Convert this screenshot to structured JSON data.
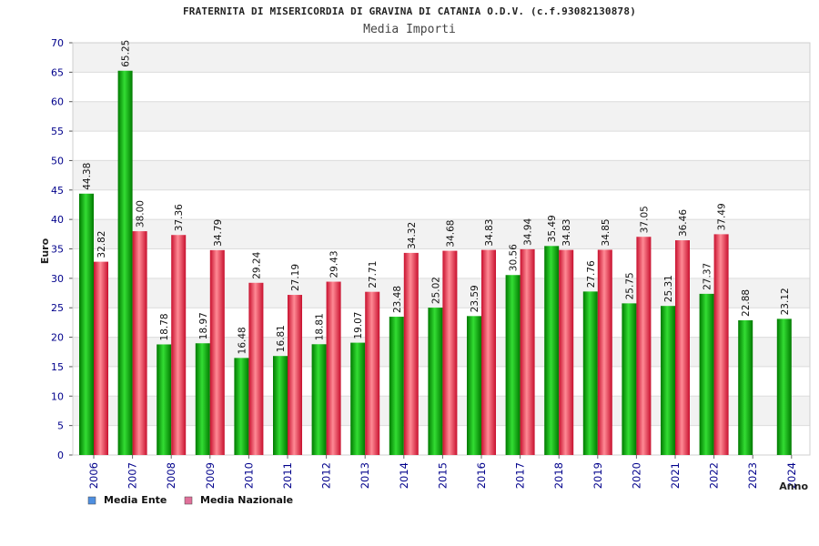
{
  "header": {
    "title": "FRATERNITA DI MISERICORDIA DI GRAVINA DI CATANIA O.D.V. (c.f.93082130878)",
    "subtitle": "Media Importi"
  },
  "colors": {
    "ente_dark": "#007a00",
    "ente_light": "#33dd33",
    "naz_dark": "#c8102e",
    "naz_light": "#ff8a95",
    "axis_text": "#00008b",
    "band": "#f2f2f2",
    "grid": "#dcdcdc",
    "legend_ente": "#4e8fe0",
    "legend_naz": "#e0709a"
  },
  "chart_data": {
    "type": "bar",
    "title": "Media Importi",
    "xlabel": "Anno",
    "ylabel": "Euro",
    "ylim": [
      0,
      70
    ],
    "ytick_step": 5,
    "grid": true,
    "legend_placement": "bottom-left",
    "categories": [
      "2006",
      "2007",
      "2008",
      "2009",
      "2010",
      "2011",
      "2012",
      "2013",
      "2014",
      "2015",
      "2016",
      "2017",
      "2018",
      "2019",
      "2020",
      "2021",
      "2022",
      "2023",
      "2024"
    ],
    "series": [
      {
        "name": "Media Ente",
        "values": [
          44.38,
          65.25,
          18.78,
          18.97,
          16.48,
          16.81,
          18.81,
          19.07,
          23.48,
          25.02,
          23.59,
          30.56,
          35.49,
          27.76,
          25.75,
          25.31,
          27.37,
          22.88,
          23.12
        ],
        "labels": [
          "44.38",
          "65.25",
          "18.78",
          "18.97",
          "16.48",
          "16.81",
          "18.81",
          "19.07",
          "23.48",
          "25.02",
          "23.59",
          "30.56",
          "35.49",
          "27.76",
          "25.75",
          "25.31",
          "27.37",
          "22.88",
          "23.12"
        ]
      },
      {
        "name": "Media Nazionale",
        "values": [
          32.82,
          38.0,
          37.36,
          34.79,
          29.24,
          27.19,
          29.43,
          27.71,
          34.32,
          34.68,
          34.83,
          34.94,
          34.83,
          34.85,
          37.05,
          36.46,
          37.49,
          null,
          null
        ],
        "labels": [
          "32.82",
          "38.00",
          "37.36",
          "34.79",
          "29.24",
          "27.19",
          "29.43",
          "27.71",
          "34.32",
          "34.68",
          "34.83",
          "34.94",
          "34.83",
          "34.85",
          "37.05",
          "36.46",
          "37.49",
          "",
          ""
        ]
      }
    ]
  }
}
